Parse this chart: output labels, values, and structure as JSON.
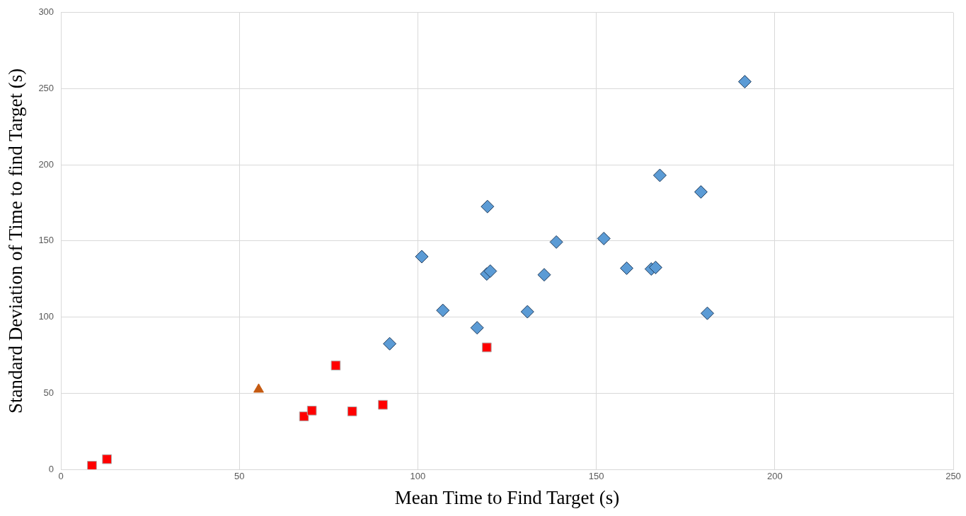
{
  "chart_data": {
    "type": "scatter",
    "xlabel": "Mean Time to Find Target (s)",
    "ylabel": "Standard Deviation of Time to find Target (s)",
    "xlim": [
      0,
      250
    ],
    "xticks": [
      0,
      50,
      100,
      150,
      200,
      250
    ],
    "ylim": [
      0,
      300
    ],
    "yticks": [
      0,
      50,
      100,
      150,
      200,
      250,
      300
    ],
    "grid": true,
    "legend": false,
    "series": [
      {
        "color": "#5b9bd5",
        "marker": "diamond",
        "x": [
          191.6,
          167.8,
          179.3,
          119.5,
          152.1,
          138.8,
          101.1,
          158.5,
          165.4,
          166.6,
          119.3,
          120.3,
          135.4,
          107.0,
          130.7,
          181.1,
          116.6,
          92.1
        ],
        "values": [
          254.6,
          193.1,
          182.2,
          172.6,
          151.6,
          149.3,
          139.7,
          132.1,
          131.6,
          132.6,
          128.3,
          130.2,
          127.8,
          104.4,
          103.5,
          102.5,
          93.0,
          82.5
        ]
      },
      {
        "color": "#ff0000",
        "marker": "square",
        "x": [
          8.7,
          12.9,
          68.1,
          70.3,
          77.0,
          81.6,
          90.2,
          119.3
        ],
        "values": [
          2.4,
          6.7,
          34.8,
          38.6,
          68.2,
          38.1,
          42.4,
          80.1
        ]
      },
      {
        "color": "#c55a11",
        "marker": "triangle",
        "x": [
          55.4
        ],
        "values": [
          52.5
        ]
      }
    ]
  }
}
